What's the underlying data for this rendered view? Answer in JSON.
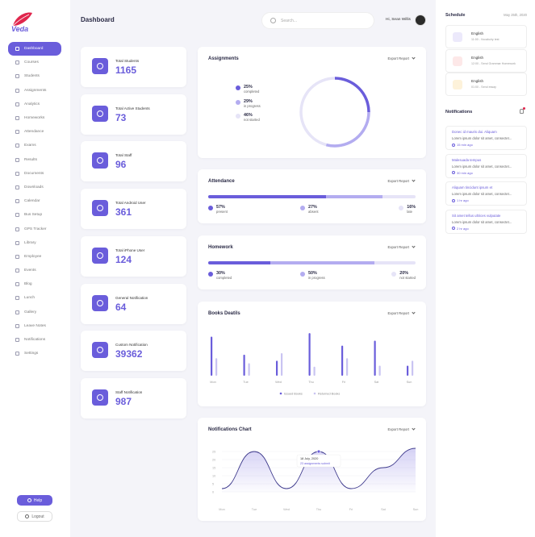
{
  "brand": {
    "name": "Veda"
  },
  "nav": {
    "items": [
      {
        "label": "Dashboard",
        "icon": "home-icon"
      },
      {
        "label": "Courses",
        "icon": "book-icon"
      },
      {
        "label": "Students",
        "icon": "user-icon"
      },
      {
        "label": "Assignments",
        "icon": "doc-icon"
      },
      {
        "label": "Analytics",
        "icon": "chart-icon"
      },
      {
        "label": "Homeworks",
        "icon": "pencil-icon"
      },
      {
        "label": "Attendance",
        "icon": "check-icon"
      },
      {
        "label": "Exams",
        "icon": "exam-icon"
      },
      {
        "label": "Results",
        "icon": "result-icon"
      },
      {
        "label": "Documents",
        "icon": "file-icon"
      },
      {
        "label": "Downloads",
        "icon": "download-icon"
      },
      {
        "label": "Calendar",
        "icon": "calendar-icon"
      },
      {
        "label": "Bus Setup",
        "icon": "bus-icon"
      },
      {
        "label": "GPS Tracker",
        "icon": "gps-icon"
      },
      {
        "label": "Library",
        "icon": "library-icon"
      },
      {
        "label": "Employee",
        "icon": "employee-icon"
      },
      {
        "label": "Events",
        "icon": "event-icon"
      },
      {
        "label": "Blog",
        "icon": "blog-icon"
      },
      {
        "label": "Lunch",
        "icon": "lunch-icon"
      },
      {
        "label": "Gallery",
        "icon": "gallery-icon"
      },
      {
        "label": "Leave Notes",
        "icon": "note-icon"
      },
      {
        "label": "Notifications",
        "icon": "bell-icon"
      },
      {
        "label": "Settings",
        "icon": "gear-icon"
      }
    ]
  },
  "footer": {
    "help": "Help",
    "logout": "Logout"
  },
  "header": {
    "title": "Dashboard",
    "search_placeholder": "Search...",
    "greeting": "Hi, Sean Willis"
  },
  "stats": [
    {
      "label": "Total Students",
      "value": "1165",
      "icon": "badge-icon"
    },
    {
      "label": "Total Active Students",
      "value": "73",
      "icon": "users-icon"
    },
    {
      "label": "Total Staff",
      "value": "96",
      "icon": "user-icon"
    },
    {
      "label": "Total Android User",
      "value": "361",
      "icon": "android-icon"
    },
    {
      "label": "Total iPhone User",
      "value": "124",
      "icon": "apple-icon"
    },
    {
      "label": "General Notification",
      "value": "64",
      "icon": "bell-icon"
    },
    {
      "label": "Custom Notification",
      "value": "39362",
      "icon": "clock-icon"
    },
    {
      "label": "Staff Notification",
      "value": "987",
      "icon": "users-icon"
    }
  ],
  "export_label": "Export Report",
  "assignments": {
    "title": "Assignments",
    "items": [
      {
        "pct": "25%",
        "label": "completed",
        "value": 25,
        "color": "#6a5ddb"
      },
      {
        "pct": "29%",
        "label": "in progress",
        "value": 29,
        "color": "#b3acf0"
      },
      {
        "pct": "46%",
        "label": "not started",
        "value": 46,
        "color": "#e6e4f7"
      }
    ]
  },
  "attendance": {
    "title": "Attendance",
    "items": [
      {
        "pct": "57%",
        "label": "present",
        "value": 57,
        "color": "#6a5ddb"
      },
      {
        "pct": "27%",
        "label": "absent",
        "value": 27,
        "color": "#b3acf0"
      },
      {
        "pct": "16%",
        "label": "late",
        "value": 16,
        "color": "#e6e4f7"
      }
    ]
  },
  "homework": {
    "title": "Homework",
    "items": [
      {
        "pct": "30%",
        "label": "completed",
        "value": 30,
        "color": "#6a5ddb"
      },
      {
        "pct": "50%",
        "label": "in progress",
        "value": 50,
        "color": "#b3acf0"
      },
      {
        "pct": "20%",
        "label": "not started",
        "value": 20,
        "color": "#e6e4f7"
      }
    ]
  },
  "books": {
    "title": "Books Deatils",
    "legend": [
      "Issued Books",
      "Returned Books"
    ]
  },
  "notif_chart": {
    "title": "Notifications Chart",
    "tooltip_date": "18 July, 2020",
    "tooltip_text": "23 assignments submit"
  },
  "chart_data": [
    {
      "type": "bar",
      "title": "Books Deatils",
      "categories": [
        "Mon",
        "Tue",
        "Wed",
        "Thu",
        "Fri",
        "Sat",
        "Sun"
      ],
      "series": [
        {
          "name": "Issued Books",
          "values": [
            78,
            42,
            30,
            85,
            60,
            70,
            20
          ],
          "color": "#6a5ddb"
        },
        {
          "name": "Returned Books",
          "values": [
            35,
            25,
            45,
            18,
            35,
            20,
            30
          ],
          "color": "#c9c4f2"
        }
      ]
    },
    {
      "type": "area",
      "title": "Notifications Chart",
      "x": [
        "Mon",
        "Tue",
        "Wed",
        "Thu",
        "Fri",
        "Sat",
        "Sun"
      ],
      "y": [
        2,
        25,
        2,
        25,
        2,
        15,
        27
      ],
      "yticks": [
        0,
        5,
        10,
        15,
        20,
        25
      ],
      "ylim": [
        0,
        28
      ]
    }
  ],
  "schedule": {
    "title": "Schedule",
    "date": "May 25th, 2020",
    "items": [
      {
        "title": "English",
        "sub": "11:00 - Vocabulry test",
        "color": "#ece9fb",
        "icon": "doc-icon"
      },
      {
        "title": "English",
        "sub": "12:00 - Send Grammar Homework",
        "color": "#fde8e8",
        "icon": "mail-icon"
      },
      {
        "title": "English",
        "sub": "01:00 - Send essay",
        "color": "#fdf2da",
        "icon": "folder-icon"
      }
    ]
  },
  "notifications": {
    "title": "Notifications",
    "items": [
      {
        "title": "Donec id mauris dui. Aliquam",
        "body": "Lorem ipsum dolor sit amet, consectet...",
        "time": "15 min ago"
      },
      {
        "title": "Malesuada tempus",
        "body": "Lorem ipsum dolor sit amet, consectet...",
        "time": "30 min ago"
      },
      {
        "title": "Aliquam tincidunt ipsum et",
        "body": "Lorem ipsum dolor sit amet, consectet...",
        "time": "1 hr ago"
      },
      {
        "title": "Sit amet tellus ultrices vulputate",
        "body": "Lorem ipsum dolor sit amet, consectet...",
        "time": "2 hr ago"
      }
    ]
  }
}
